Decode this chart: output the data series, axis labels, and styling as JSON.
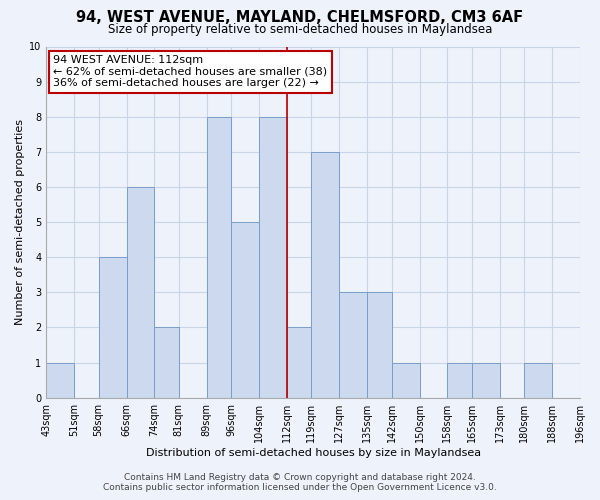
{
  "title": "94, WEST AVENUE, MAYLAND, CHELMSFORD, CM3 6AF",
  "subtitle": "Size of property relative to semi-detached houses in Maylandsea",
  "xlabel": "Distribution of semi-detached houses by size in Maylandsea",
  "ylabel": "Number of semi-detached properties",
  "bar_edges": [
    43,
    51,
    58,
    66,
    74,
    81,
    89,
    96,
    104,
    112,
    119,
    127,
    135,
    142,
    150,
    158,
    165,
    173,
    180,
    188,
    196
  ],
  "bar_heights": [
    1,
    0,
    4,
    6,
    2,
    0,
    8,
    5,
    8,
    2,
    7,
    3,
    3,
    1,
    0,
    1,
    1,
    0,
    1,
    0
  ],
  "bar_color": "#ccd9ee",
  "bar_edgecolor": "#7a9ec8",
  "grid_color": "#c8d4e8",
  "reference_line_x": 112,
  "reference_line_color": "#bb0000",
  "annotation_title": "94 WEST AVENUE: 112sqm",
  "annotation_line1": "← 62% of semi-detached houses are smaller (38)",
  "annotation_line2": "36% of semi-detached houses are larger (22) →",
  "annotation_box_edgecolor": "#bb0000",
  "annotation_box_facecolor": "#ffffff",
  "ylim": [
    0,
    10
  ],
  "yticks": [
    0,
    1,
    2,
    3,
    4,
    5,
    6,
    7,
    8,
    9,
    10
  ],
  "tick_labels": [
    "43sqm",
    "51sqm",
    "58sqm",
    "66sqm",
    "74sqm",
    "81sqm",
    "89sqm",
    "96sqm",
    "104sqm",
    "112sqm",
    "119sqm",
    "127sqm",
    "135sqm",
    "142sqm",
    "150sqm",
    "158sqm",
    "165sqm",
    "173sqm",
    "180sqm",
    "188sqm",
    "196sqm"
  ],
  "footer_line1": "Contains HM Land Registry data © Crown copyright and database right 2024.",
  "footer_line2": "Contains public sector information licensed under the Open Government Licence v3.0.",
  "bg_color": "#eef2fa",
  "title_fontsize": 10.5,
  "subtitle_fontsize": 8.5,
  "axis_label_fontsize": 8,
  "tick_fontsize": 7,
  "annotation_fontsize": 8,
  "footer_fontsize": 6.5
}
